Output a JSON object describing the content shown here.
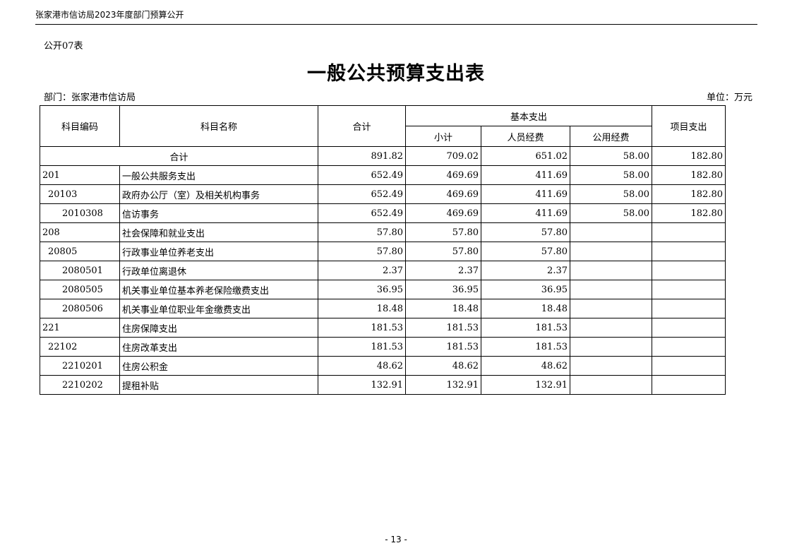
{
  "header": {
    "doc_title": "张家港市信访局2023年度部门预算公开"
  },
  "form_no": "公开07表",
  "title": "一般公共预算支出表",
  "department": "部门：张家港市信访局",
  "unit": "单位：万元",
  "columns": {
    "code": "科目编码",
    "name": "科目名称",
    "total": "合计",
    "basic": "基本支出",
    "subtotal": "小计",
    "personnel": "人员经费",
    "public": "公用经费",
    "project": "项目支出"
  },
  "total_row": {
    "label": "合计",
    "total": "891.82",
    "subtotal": "709.02",
    "personnel": "651.02",
    "public": "58.00",
    "project": "182.80"
  },
  "rows": [
    {
      "code": "201",
      "name": "一般公共服务支出",
      "total": "652.49",
      "subtotal": "469.69",
      "personnel": "411.69",
      "public": "58.00",
      "project": "182.80"
    },
    {
      "code": "20103",
      "name": "政府办公厅（室）及相关机构事务",
      "total": "652.49",
      "subtotal": "469.69",
      "personnel": "411.69",
      "public": "58.00",
      "project": "182.80"
    },
    {
      "code": "2010308",
      "name": "信访事务",
      "total": "652.49",
      "subtotal": "469.69",
      "personnel": "411.69",
      "public": "58.00",
      "project": "182.80"
    },
    {
      "code": "208",
      "name": "社会保障和就业支出",
      "total": "57.80",
      "subtotal": "57.80",
      "personnel": "57.80",
      "public": "",
      "project": ""
    },
    {
      "code": "20805",
      "name": "行政事业单位养老支出",
      "total": "57.80",
      "subtotal": "57.80",
      "personnel": "57.80",
      "public": "",
      "project": ""
    },
    {
      "code": "2080501",
      "name": "行政单位离退休",
      "total": "2.37",
      "subtotal": "2.37",
      "personnel": "2.37",
      "public": "",
      "project": ""
    },
    {
      "code": "2080505",
      "name": "机关事业单位基本养老保险缴费支出",
      "total": "36.95",
      "subtotal": "36.95",
      "personnel": "36.95",
      "public": "",
      "project": ""
    },
    {
      "code": "2080506",
      "name": "机关事业单位职业年金缴费支出",
      "total": "18.48",
      "subtotal": "18.48",
      "personnel": "18.48",
      "public": "",
      "project": ""
    },
    {
      "code": "221",
      "name": "住房保障支出",
      "total": "181.53",
      "subtotal": "181.53",
      "personnel": "181.53",
      "public": "",
      "project": ""
    },
    {
      "code": "22102",
      "name": "住房改革支出",
      "total": "181.53",
      "subtotal": "181.53",
      "personnel": "181.53",
      "public": "",
      "project": ""
    },
    {
      "code": "2210201",
      "name": "住房公积金",
      "total": "48.62",
      "subtotal": "48.62",
      "personnel": "48.62",
      "public": "",
      "project": ""
    },
    {
      "code": "2210202",
      "name": "提租补贴",
      "total": "132.91",
      "subtotal": "132.91",
      "personnel": "132.91",
      "public": "",
      "project": ""
    }
  ],
  "page_number": "- 13 -"
}
